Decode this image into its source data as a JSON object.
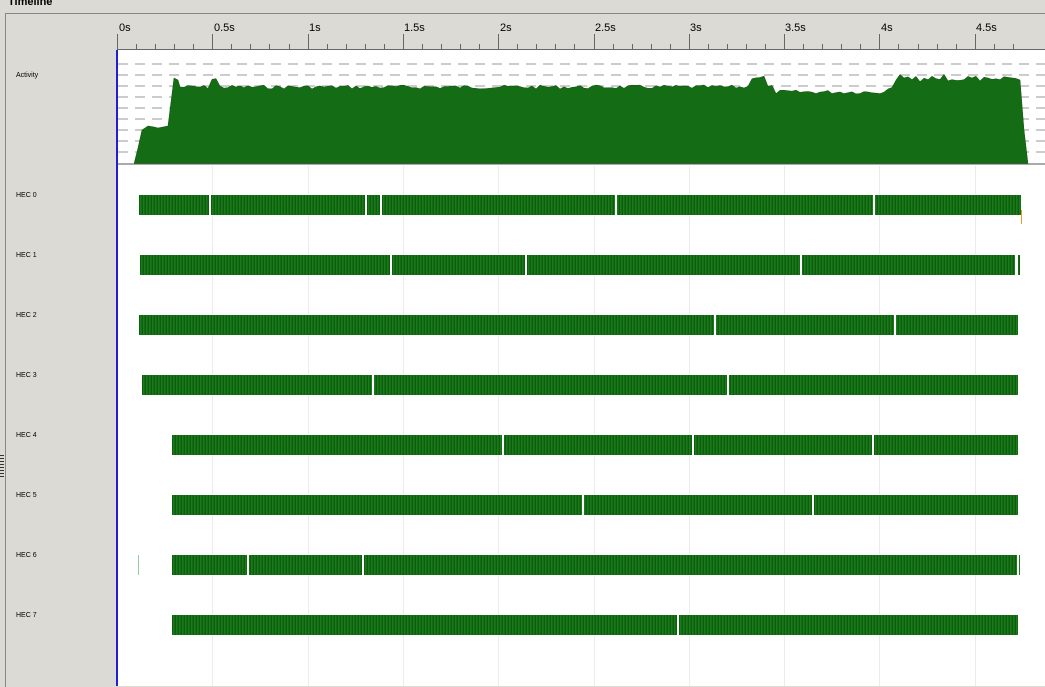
{
  "window": {
    "title": "Timeline"
  },
  "ruler": {
    "tick_labels": [
      "0s",
      "0.5s",
      "1s",
      "1.5s",
      "2s",
      "2.5s",
      "3s",
      "3.5s",
      "4s",
      "4.5s"
    ]
  },
  "tracks": {
    "activity_label": "Activity",
    "hec_labels": [
      "HEC 0",
      "HEC 1",
      "HEC 2",
      "HEC 3",
      "HEC 4",
      "HEC 5",
      "HEC 6",
      "HEC 7"
    ]
  },
  "colors": {
    "activity_fill": "#146d14",
    "bar_green": "#146d14",
    "cursor_line": "#1f1fd6",
    "background": "#dcdad5"
  }
}
